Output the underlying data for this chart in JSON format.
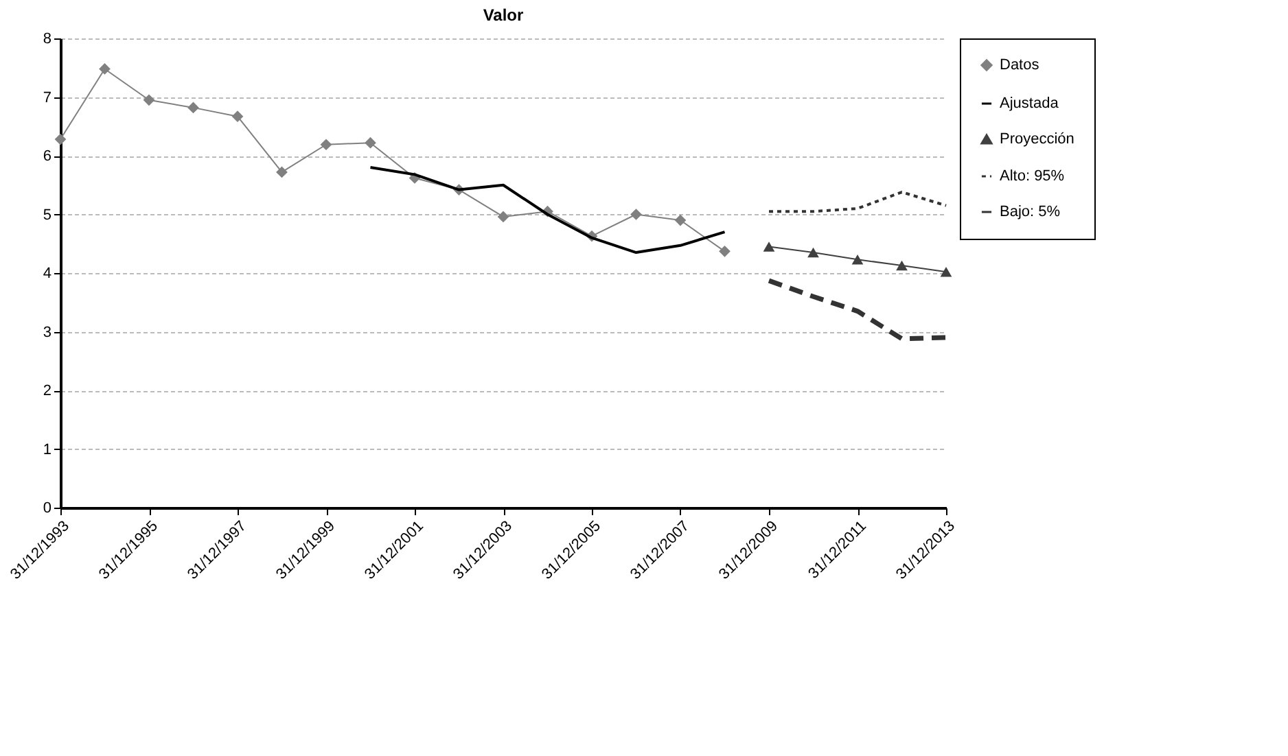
{
  "chart_data": {
    "type": "line",
    "title": "Valor",
    "categories": [
      "31/12/1993",
      null,
      "31/12/1995",
      null,
      "31/12/1997",
      null,
      "31/12/1999",
      null,
      "31/12/2001",
      null,
      "31/12/2003",
      null,
      "31/12/2005",
      null,
      "31/12/2007",
      null,
      "31/12/2009",
      null,
      "31/12/2011",
      null,
      "31/12/2013"
    ],
    "ylim": [
      0,
      8
    ],
    "yticks": [
      0,
      1,
      2,
      3,
      4,
      5,
      6,
      7,
      8
    ],
    "grid": "y",
    "legend": "right",
    "series": [
      {
        "name": "Datos",
        "color": "#808080",
        "marker": "diamond",
        "line_style": "solid",
        "values": [
          6.28,
          7.48,
          6.95,
          6.82,
          6.67,
          5.72,
          6.19,
          6.22,
          5.62,
          5.42,
          4.96,
          5.05,
          4.63,
          5.0,
          4.9,
          4.37,
          null,
          null,
          null,
          null,
          null
        ]
      },
      {
        "name": "Ajustada",
        "color": "#000000",
        "marker": "none",
        "line_style": "solid",
        "values": [
          null,
          null,
          null,
          null,
          null,
          null,
          null,
          5.8,
          5.68,
          5.42,
          5.5,
          5.0,
          4.6,
          4.35,
          4.47,
          4.7,
          null,
          null,
          null,
          null,
          null
        ]
      },
      {
        "name": "Proyección",
        "color": "#404040",
        "marker": "triangle",
        "line_style": "solid",
        "values": [
          null,
          null,
          null,
          null,
          null,
          null,
          null,
          null,
          null,
          null,
          null,
          null,
          null,
          null,
          null,
          null,
          4.45,
          4.35,
          4.23,
          4.13,
          4.02
        ]
      },
      {
        "name": "Alto: 95%",
        "color": "#333333",
        "marker": "none",
        "line_style": "dotted",
        "values": [
          null,
          null,
          null,
          null,
          null,
          null,
          null,
          null,
          null,
          null,
          null,
          null,
          null,
          null,
          null,
          null,
          5.05,
          5.05,
          5.1,
          5.38,
          5.15
        ]
      },
      {
        "name": "Bajo: 5%",
        "color": "#333333",
        "marker": "none",
        "line_style": "dashed",
        "values": [
          null,
          null,
          null,
          null,
          null,
          null,
          null,
          null,
          null,
          null,
          null,
          null,
          null,
          null,
          null,
          null,
          3.87,
          3.6,
          3.35,
          2.88,
          2.9
        ]
      }
    ]
  }
}
